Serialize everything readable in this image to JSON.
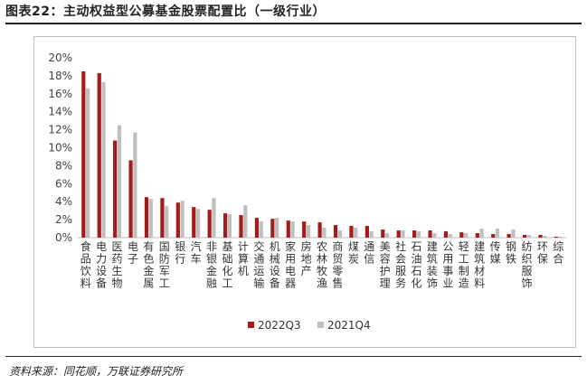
{
  "header": {
    "title": "图表22：主动权益型公募基金股票配置比（一级行业）"
  },
  "footer": {
    "source": "资料来源：同花顺，万联证券研究所"
  },
  "chart_data": {
    "type": "bar",
    "title": "",
    "xlabel": "",
    "ylabel": "",
    "ylim": [
      0,
      20
    ],
    "yticks": [
      "0%",
      "2%",
      "4%",
      "6%",
      "8%",
      "10%",
      "12%",
      "14%",
      "16%",
      "18%",
      "20%"
    ],
    "grid": false,
    "legend": "bottom-center",
    "categories": [
      "食品饮料",
      "电力设备",
      "医药生物",
      "电子",
      "有色金属",
      "国防军工",
      "银行",
      "汽车",
      "非银金融",
      "基础化工",
      "计算机",
      "交通运输",
      "机械设备",
      "家用电器",
      "房地产",
      "农林牧渔",
      "商贸零售",
      "煤炭",
      "通信",
      "美容护理",
      "社会服务",
      "石油石化",
      "建筑装饰",
      "公用事业",
      "轻工制造",
      "建筑材料",
      "传媒",
      "钢铁",
      "纺织服饰",
      "环保",
      "综合"
    ],
    "series": [
      {
        "name": "2022Q3",
        "color": "#a31c1c",
        "values": [
          18.5,
          18.3,
          10.8,
          8.6,
          4.5,
          4.4,
          3.9,
          3.4,
          3.1,
          2.7,
          2.5,
          2.2,
          2.1,
          1.9,
          1.8,
          1.7,
          1.4,
          1.3,
          1.3,
          0.9,
          0.8,
          0.8,
          0.8,
          0.7,
          0.6,
          0.5,
          0.4,
          0.4,
          0.3,
          0.3,
          0.1
        ]
      },
      {
        "name": "2021Q4",
        "color": "#bfbfbf",
        "values": [
          16.6,
          17.3,
          12.5,
          11.7,
          4.3,
          3.5,
          4.1,
          3.2,
          4.4,
          2.6,
          3.6,
          1.8,
          2.2,
          1.8,
          1.4,
          1.1,
          0.8,
          1.1,
          0.7,
          0.5,
          0.8,
          0.7,
          0.5,
          0.4,
          0.5,
          1.0,
          1.0,
          0.9,
          0.3,
          0.2,
          0.1
        ]
      }
    ]
  }
}
